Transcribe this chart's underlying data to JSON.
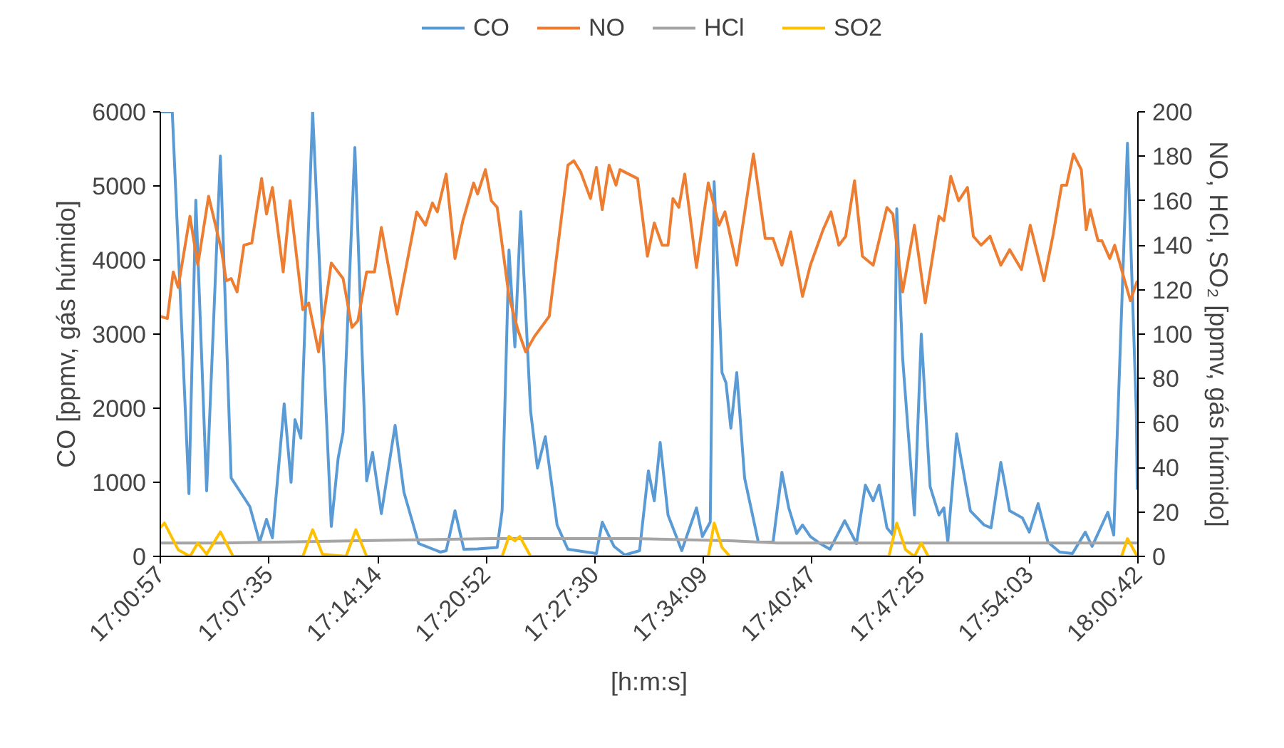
{
  "chart_data": {
    "type": "line",
    "xlabel": "[h:m:s]",
    "ylabel": "CO [ppmv, gás húmido]",
    "y2label": "NO, HCl, SO₂ [ppmv, gás húmido]",
    "xlim": [
      17.01583,
      18.01167
    ],
    "xticks": [
      {
        "value": 17.01583,
        "label": "17:00:57"
      },
      {
        "value": 17.12639,
        "label": "17:07:35"
      },
      {
        "value": 17.23722,
        "label": "17:14:14"
      },
      {
        "value": 17.34778,
        "label": "17:20:52"
      },
      {
        "value": 17.45833,
        "label": "17:27:30"
      },
      {
        "value": 17.56917,
        "label": "17:34:09"
      },
      {
        "value": 17.67972,
        "label": "17:40:47"
      },
      {
        "value": 17.79028,
        "label": "17:47:25"
      },
      {
        "value": 17.90083,
        "label": "17:54:03"
      },
      {
        "value": 18.01167,
        "label": "18:00:42"
      }
    ],
    "ylim": [
      0,
      6000
    ],
    "yticks": [
      0,
      1000,
      2000,
      3000,
      4000,
      5000,
      6000
    ],
    "y2lim": [
      0,
      200
    ],
    "y2ticks": [
      0,
      20,
      40,
      60,
      80,
      100,
      120,
      140,
      160,
      180,
      200
    ],
    "grid": false,
    "legend": "top",
    "line_style": "solid",
    "marker": "none",
    "series": [
      {
        "name": "CO",
        "color": "#5b9bd5",
        "x": [
          17.016,
          17.028,
          17.045,
          17.052,
          17.063,
          17.077,
          17.088,
          17.107,
          17.117,
          17.124,
          17.13,
          17.142,
          17.149,
          17.153,
          17.159,
          17.171,
          17.19,
          17.197,
          17.202,
          17.214,
          17.226,
          17.232,
          17.241,
          17.255,
          17.264,
          17.279,
          17.301,
          17.307,
          17.316,
          17.325,
          17.339,
          17.359,
          17.364,
          17.371,
          17.377,
          17.383,
          17.393,
          17.4,
          17.408,
          17.42,
          17.431,
          17.46,
          17.466,
          17.478,
          17.489,
          17.504,
          17.513,
          17.519,
          17.525,
          17.533,
          17.547,
          17.562,
          17.568,
          17.576,
          17.58,
          17.588,
          17.592,
          17.597,
          17.603,
          17.611,
          17.625,
          17.64,
          17.649,
          17.656,
          17.664,
          17.67,
          17.678,
          17.688,
          17.698,
          17.713,
          17.725,
          17.734,
          17.742,
          17.748,
          17.756,
          17.762,
          17.766,
          17.772,
          17.784,
          17.791,
          17.8,
          17.809,
          17.814,
          17.818,
          17.827,
          17.841,
          17.855,
          17.862,
          17.872,
          17.881,
          17.894,
          17.901,
          17.91,
          17.92,
          17.932,
          17.945,
          17.958,
          17.965,
          17.981,
          17.987,
          18.001,
          18.01,
          18.011
        ],
        "values": [
          6000,
          6000,
          846,
          4808,
          885,
          5404,
          1058,
          673,
          192,
          500,
          250,
          2058,
          1000,
          1846,
          1596,
          6000,
          404,
          1327,
          1673,
          5519,
          1019,
          1404,
          577,
          1769,
          865,
          173,
          58,
          77,
          615,
          96,
          100,
          120,
          615,
          4135,
          2827,
          4654,
          1961,
          1192,
          1615,
          423,
          96,
          38,
          462,
          135,
          19,
          77,
          1154,
          750,
          1538,
          558,
          77,
          654,
          269,
          462,
          5058,
          2481,
          2346,
          1731,
          2481,
          1058,
          192,
          192,
          1135,
          654,
          308,
          423,
          269,
          173,
          96,
          481,
          173,
          962,
          750,
          962,
          385,
          288,
          4692,
          2673,
          558,
          3000,
          942,
          558,
          654,
          192,
          1654,
          615,
          423,
          385,
          1269,
          615,
          519,
          327,
          712,
          192,
          58,
          38,
          327,
          135,
          596,
          288,
          5577,
          1961,
          900
        ]
      },
      {
        "name": "NO",
        "color": "#ed7d31",
        "axis": "y2",
        "x": [
          17.016,
          17.023,
          17.029,
          17.034,
          17.046,
          17.054,
          17.065,
          17.078,
          17.083,
          17.088,
          17.094,
          17.101,
          17.109,
          17.119,
          17.124,
          17.13,
          17.141,
          17.148,
          17.161,
          17.167,
          17.177,
          17.19,
          17.202,
          17.211,
          17.217,
          17.226,
          17.234,
          17.241,
          17.257,
          17.277,
          17.286,
          17.293,
          17.298,
          17.307,
          17.316,
          17.324,
          17.335,
          17.339,
          17.347,
          17.353,
          17.359,
          17.371,
          17.38,
          17.388,
          17.397,
          17.412,
          17.431,
          17.437,
          17.444,
          17.454,
          17.46,
          17.466,
          17.473,
          17.48,
          17.484,
          17.502,
          17.512,
          17.519,
          17.527,
          17.533,
          17.538,
          17.544,
          17.55,
          17.562,
          17.574,
          17.585,
          17.591,
          17.603,
          17.62,
          17.632,
          17.64,
          17.649,
          17.658,
          17.67,
          17.678,
          17.691,
          17.699,
          17.707,
          17.714,
          17.723,
          17.731,
          17.742,
          17.756,
          17.762,
          17.772,
          17.784,
          17.795,
          17.809,
          17.814,
          17.821,
          17.829,
          17.838,
          17.844,
          17.852,
          17.861,
          17.872,
          17.881,
          17.893,
          17.902,
          17.916,
          17.925,
          17.934,
          17.939,
          17.946,
          17.954,
          17.959,
          17.963,
          17.971,
          17.975,
          17.983,
          17.988,
          18.004,
          18.011
        ],
        "values": [
          108,
          107,
          128,
          121,
          153,
          131,
          162,
          138,
          124,
          125,
          119,
          140,
          141,
          170,
          154,
          166,
          128,
          160,
          111,
          114,
          92,
          132,
          125,
          103,
          106,
          128,
          128,
          148,
          109,
          155,
          149,
          159,
          155,
          172,
          134,
          151,
          168,
          163,
          174,
          160,
          157,
          117,
          102,
          92,
          99,
          108,
          176,
          178,
          173,
          161,
          175,
          156,
          176,
          167,
          174,
          170,
          135,
          150,
          140,
          140,
          161,
          157,
          172,
          130,
          168,
          149,
          155,
          131,
          181,
          143,
          143,
          131,
          146,
          117,
          131,
          147,
          155,
          140,
          144,
          169,
          135,
          131,
          157,
          154,
          119,
          149,
          114,
          153,
          151,
          171,
          160,
          166,
          144,
          140,
          144,
          131,
          138,
          129,
          149,
          124,
          144,
          167,
          167,
          181,
          174,
          147,
          156,
          142,
          142,
          134,
          140,
          115,
          124
        ]
      },
      {
        "name": "HCl",
        "color": "#a5a5a5",
        "axis": "y2",
        "x": [
          17.016,
          17.078,
          17.209,
          17.354,
          17.499,
          17.6,
          17.644,
          17.789,
          17.862,
          18.011
        ],
        "values": [
          6,
          6,
          7,
          8,
          8,
          7,
          6,
          6,
          6,
          6
        ]
      },
      {
        "name": "SO2",
        "color": "#ffc000",
        "axis": "y2",
        "x": [
          17.016,
          17.02,
          17.034,
          17.046,
          17.054,
          17.063,
          17.077,
          17.09,
          17.161,
          17.171,
          17.181,
          17.205,
          17.215,
          17.226,
          17.364,
          17.371,
          17.377,
          17.382,
          17.393,
          17.574,
          17.58,
          17.588,
          17.596,
          17.758,
          17.766,
          17.775,
          17.784,
          17.791,
          17.798,
          17.995,
          18.001,
          18.011
        ],
        "values": [
          13,
          15,
          3,
          0,
          6,
          1,
          11,
          0,
          0,
          12,
          1,
          0,
          12,
          0,
          0,
          9,
          7,
          9,
          0,
          0,
          15,
          4,
          0,
          0,
          15,
          3,
          0,
          6,
          0,
          0,
          8,
          0
        ]
      }
    ]
  }
}
